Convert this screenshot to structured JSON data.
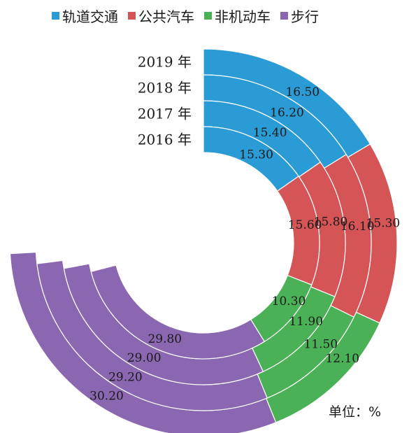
{
  "chart_data": {
    "type": "radial-bar",
    "unit_label": "单位：%",
    "categories": [
      "2019 年",
      "2018 年",
      "2017 年",
      "2016 年"
    ],
    "series": [
      {
        "name": "轨道交通",
        "color": "#2b9bd6",
        "values": [
          16.5,
          16.2,
          15.4,
          15.3
        ]
      },
      {
        "name": "公共汽车",
        "color": "#d55456",
        "values": [
          15.3,
          16.1,
          15.8,
          15.6
        ]
      },
      {
        "name": "非机动车",
        "color": "#4bb157",
        "values": [
          12.1,
          11.5,
          11.9,
          10.3
        ]
      },
      {
        "name": "步行",
        "color": "#8c67b1",
        "values": [
          30.2,
          29.2,
          29.0,
          29.8
        ]
      }
    ],
    "value_labels": [
      [
        "16.50",
        "16.20",
        "15.40",
        "15.30"
      ],
      [
        "15.30",
        "16.10",
        "15.80",
        "15.60"
      ],
      [
        "12.10",
        "11.50",
        "11.90",
        "10.30"
      ],
      [
        "30.20",
        "29.20",
        "29.00",
        "29.80"
      ]
    ],
    "legend_position": "top"
  }
}
